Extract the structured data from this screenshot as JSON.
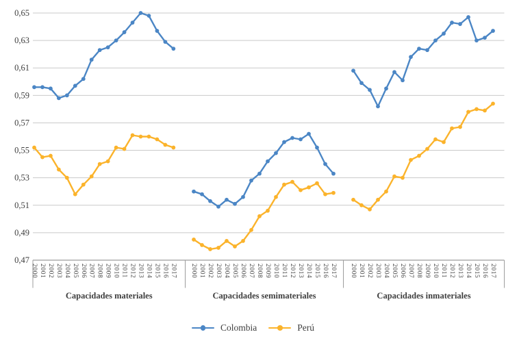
{
  "chart_data": {
    "type": "line",
    "title": "",
    "ylim": [
      0.47,
      0.65
    ],
    "grid": true,
    "legend_position": "bottom-center",
    "categories": [
      "2000",
      "2001",
      "2002",
      "2003",
      "2004",
      "2005",
      "2006",
      "2007",
      "2008",
      "2009",
      "2010",
      "2011",
      "2012",
      "2013",
      "2014",
      "2015",
      "2016",
      "2017"
    ],
    "y_axis": {
      "ticks": [
        {
          "value": 0.65,
          "label": "0,65"
        },
        {
          "value": 0.63,
          "label": "0,63"
        },
        {
          "value": 0.61,
          "label": "0,61"
        },
        {
          "value": 0.59,
          "label": "0,59"
        },
        {
          "value": 0.57,
          "label": "0,57"
        },
        {
          "value": 0.55,
          "label": "0,55"
        },
        {
          "value": 0.53,
          "label": "0,53"
        },
        {
          "value": 0.51,
          "label": "0,51"
        },
        {
          "value": 0.49,
          "label": "0,49"
        },
        {
          "value": 0.47,
          "label": "0,47"
        }
      ]
    },
    "panels": [
      {
        "label": "Capacidades materiales",
        "series": [
          {
            "name": "Colombia",
            "values": [
              0.596,
              0.596,
              0.595,
              0.588,
              0.59,
              0.597,
              0.602,
              0.616,
              0.623,
              0.625,
              0.63,
              0.636,
              0.643,
              0.65,
              0.648,
              0.637,
              0.629,
              0.624
            ]
          },
          {
            "name": "Perú",
            "values": [
              0.552,
              0.545,
              0.546,
              0.536,
              0.53,
              0.518,
              0.525,
              0.531,
              0.54,
              0.542,
              0.552,
              0.551,
              0.561,
              0.56,
              0.56,
              0.558,
              0.554,
              0.552
            ]
          }
        ]
      },
      {
        "label": "Capacidades semimateriales",
        "series": [
          {
            "name": "Colombia",
            "values": [
              0.52,
              0.518,
              0.513,
              0.509,
              0.514,
              0.511,
              0.516,
              0.528,
              0.533,
              0.542,
              0.548,
              0.556,
              0.559,
              0.558,
              0.562,
              0.552,
              0.54,
              0.533
            ]
          },
          {
            "name": "Perú",
            "values": [
              0.485,
              0.481,
              0.478,
              0.479,
              0.484,
              0.48,
              0.484,
              0.492,
              0.502,
              0.506,
              0.516,
              0.525,
              0.527,
              0.521,
              0.523,
              0.526,
              0.518,
              0.519
            ]
          }
        ]
      },
      {
        "label": "Capacidades inmateriales",
        "series": [
          {
            "name": "Colombia",
            "values": [
              0.608,
              0.599,
              0.594,
              0.582,
              0.595,
              0.607,
              0.601,
              0.618,
              0.624,
              0.623,
              0.63,
              0.635,
              0.643,
              0.642,
              0.647,
              0.63,
              0.632,
              0.637
            ]
          },
          {
            "name": "Perú",
            "values": [
              0.514,
              0.51,
              0.507,
              0.514,
              0.52,
              0.531,
              0.53,
              0.543,
              0.546,
              0.551,
              0.558,
              0.556,
              0.566,
              0.567,
              0.578,
              0.58,
              0.579,
              0.584
            ]
          }
        ]
      }
    ],
    "legend": [
      {
        "label": "Colombia",
        "color": "#4b86c5"
      },
      {
        "label": "Perú",
        "color": "#fbb32b"
      }
    ],
    "colors": {
      "gridline": "#c9c9c9",
      "axis": "#9c9c9c",
      "text": "#3e3e3e"
    }
  }
}
